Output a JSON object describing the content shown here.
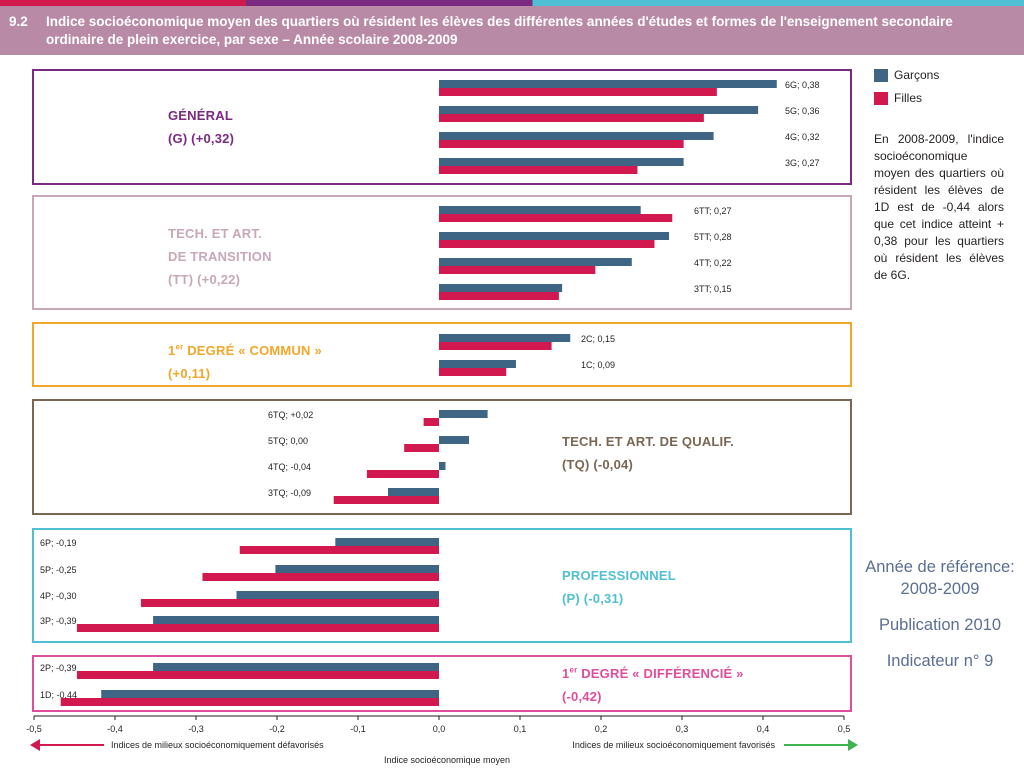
{
  "header": {
    "number": "9.2",
    "title": "Indice socioéconomique moyen des quartiers où résident les élèves des différentes années d'études et formes de l'enseignement secondaire ordinaire de plein exercice, par sexe – Année scolaire 2008-2009"
  },
  "legend": {
    "boys": "Garçons",
    "girls": "Filles"
  },
  "note": "En 2008-2009, l'indice socioéconomique moyen des quartiers où résident les élèves de 1D est de -0,44 alors que cet indice atteint + 0,38 pour les quartiers où résident les élèves de 6G.",
  "reference": {
    "year_label": "Année de référence:",
    "year": "2008-2009",
    "publication": "Publication 2010",
    "indicator": "Indicateur n° 9"
  },
  "colors": {
    "boys": "#3f6584",
    "girls": "#d1194f",
    "general": "#7b2a82",
    "tt": "#c7a7b8",
    "commun": "#f0a72a",
    "tq": "#7a6652",
    "pro": "#4fbfd4",
    "diff": "#e04d9c",
    "header": "#b98aa5"
  },
  "groups": [
    {
      "id": "general",
      "label": [
        "GÉNÉRAL",
        "(G) (+0,32)"
      ],
      "color": "#7b2a82"
    },
    {
      "id": "tt",
      "label": [
        "TECH. ET ART.",
        "DE TRANSITION",
        "(TT) (+0,22)"
      ],
      "color": "#c7a7b8"
    },
    {
      "id": "commun",
      "label_sup": "er",
      "label": [
        "1 DEGRÉ « COMMUN »",
        "(+0,11)"
      ],
      "color": "#f0a72a"
    },
    {
      "id": "tq",
      "label": [
        "TECH. ET ART. DE QUALIF.",
        "(TQ) (-0,04)"
      ],
      "color": "#7a6652"
    },
    {
      "id": "pro",
      "label": [
        "PROFESSIONNEL",
        "(P) (-0,31)"
      ],
      "color": "#4fbfd4"
    },
    {
      "id": "diff",
      "label_sup": "er",
      "label": [
        "1 DEGRÉ « DIFFÉRENCIÉ »",
        "(-0,42)"
      ],
      "color": "#e04d9c"
    }
  ],
  "chart_data": {
    "type": "bar",
    "orientation": "horizontal",
    "xlabel": "Indice socioéconomique moyen",
    "xlim": [
      -0.5,
      0.5
    ],
    "xticks": [
      "-0,5",
      "-0,4",
      "-0,3",
      "-0,2",
      "-0,1",
      "0,0",
      "0,1",
      "0,2",
      "0,3",
      "0,4",
      "0,5"
    ],
    "arrow_left_label": "Indices de milieux socioéconomiquement défavorisés",
    "arrow_right_label": "Indices de milieux socioéconomiquement favorisés",
    "series_names": [
      "Garçons",
      "Filles"
    ],
    "categories": [
      {
        "group": "general",
        "label": "6G; 0,38",
        "boys": 0.417,
        "girls": 0.343
      },
      {
        "group": "general",
        "label": "5G; 0,36",
        "boys": 0.394,
        "girls": 0.327
      },
      {
        "group": "general",
        "label": "4G; 0,32",
        "boys": 0.339,
        "girls": 0.302
      },
      {
        "group": "general",
        "label": "3G; 0,27",
        "boys": 0.302,
        "girls": 0.245
      },
      {
        "group": "tt",
        "label": "6TT; 0,27",
        "boys": 0.249,
        "girls": 0.288
      },
      {
        "group": "tt",
        "label": "5TT; 0,28",
        "boys": 0.284,
        "girls": 0.266
      },
      {
        "group": "tt",
        "label": "4TT; 0,22",
        "boys": 0.238,
        "girls": 0.193
      },
      {
        "group": "tt",
        "label": "3TT; 0,15",
        "boys": 0.152,
        "girls": 0.148
      },
      {
        "group": "commun",
        "label": "2C; 0,15",
        "boys": 0.162,
        "girls": 0.139
      },
      {
        "group": "commun",
        "label": "1C; 0,09",
        "boys": 0.095,
        "girls": 0.083
      },
      {
        "group": "tq",
        "label": "6TQ; +0,02",
        "boys": 0.06,
        "girls": -0.019
      },
      {
        "group": "tq",
        "label": "5TQ; 0,00",
        "boys": 0.037,
        "girls": -0.043
      },
      {
        "group": "tq",
        "label": "4TQ; -0,04",
        "boys": 0.008,
        "girls": -0.089
      },
      {
        "group": "tq",
        "label": "3TQ; -0,09",
        "boys": -0.063,
        "girls": -0.13
      },
      {
        "group": "pro",
        "label": "6P; -0,19",
        "boys": -0.128,
        "girls": -0.246
      },
      {
        "group": "pro",
        "label": "5P; -0,25",
        "boys": -0.202,
        "girls": -0.292
      },
      {
        "group": "pro",
        "label": "4P; -0,30",
        "boys": -0.25,
        "girls": -0.368
      },
      {
        "group": "pro",
        "label": "3P; -0,39",
        "boys": -0.353,
        "girls": -0.447
      },
      {
        "group": "diff",
        "label": "2P; -0,39",
        "boys": -0.353,
        "girls": -0.447
      },
      {
        "group": "diff",
        "label": "1D; -0,44",
        "boys": -0.417,
        "girls": -0.467
      }
    ]
  }
}
